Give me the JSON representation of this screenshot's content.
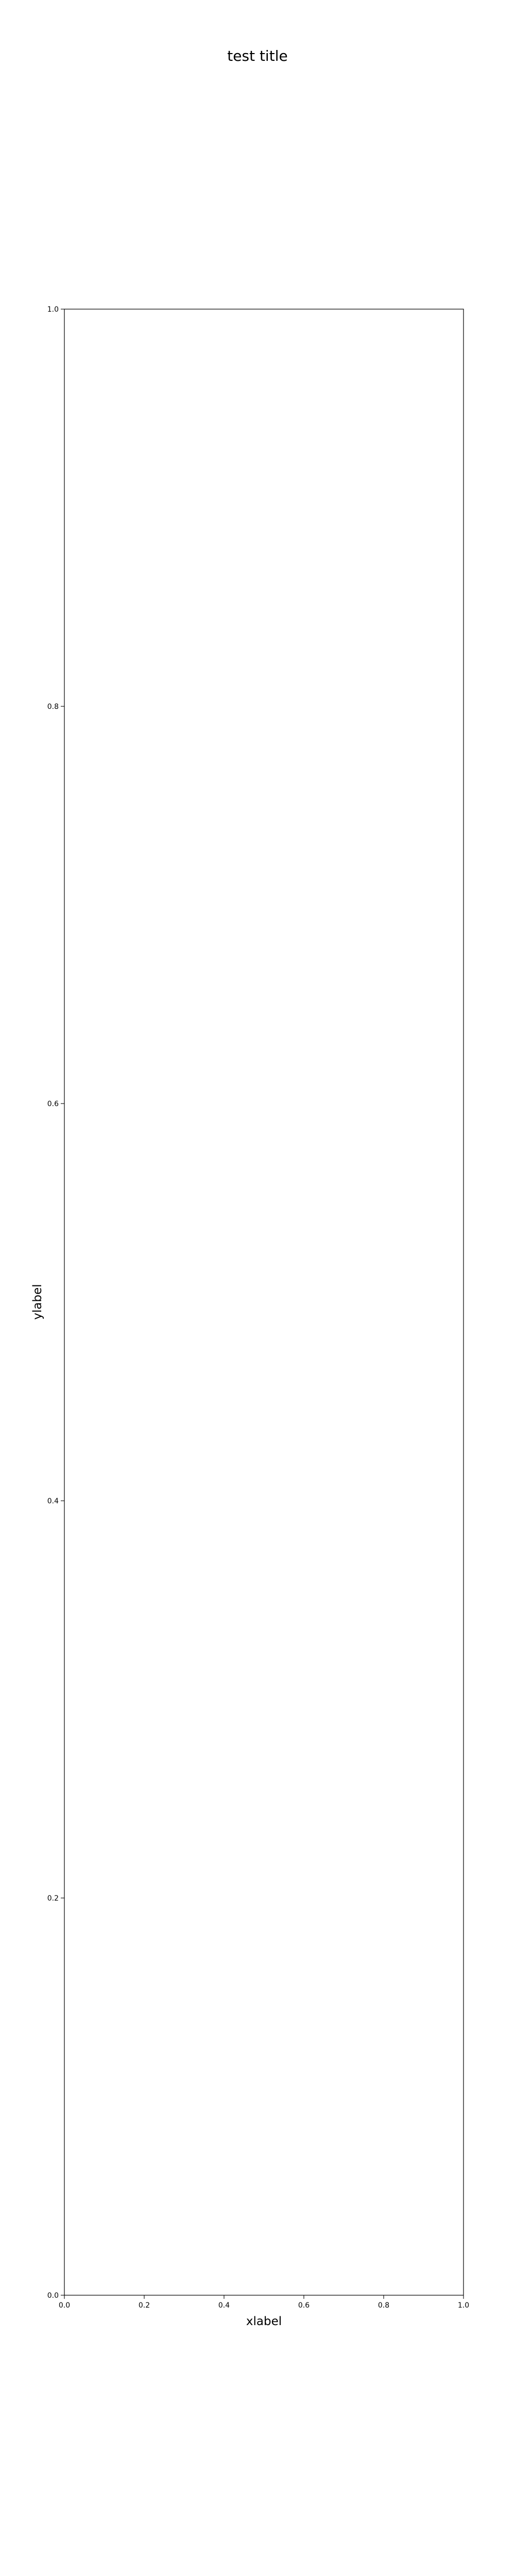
{
  "chart_data": {
    "type": "line",
    "title": "test title",
    "xlabel": "xlabel",
    "ylabel": "ylabel",
    "xlim": [
      0.0,
      1.0
    ],
    "ylim": [
      0.0,
      1.0
    ],
    "xticks": [
      "0.0",
      "0.2",
      "0.4",
      "0.6",
      "0.8",
      "1.0"
    ],
    "yticks": [
      "0.0",
      "0.2",
      "0.4",
      "0.6",
      "0.8",
      "1.0"
    ],
    "series": [],
    "grid": false
  }
}
